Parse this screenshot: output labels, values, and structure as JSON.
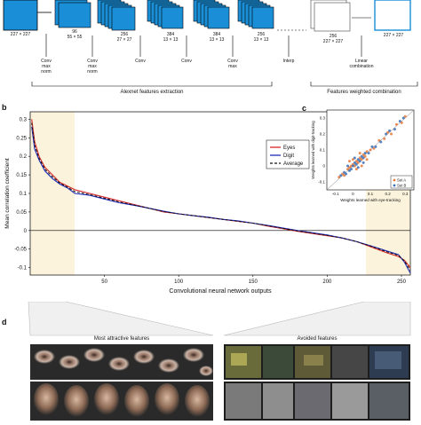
{
  "figure_top": {
    "input_dim": "227 × 227",
    "layers": [
      {
        "channels": "96",
        "dim": "55 × 55"
      },
      {
        "channels": "256",
        "dim": "27 × 27"
      },
      {
        "channels": "384",
        "dim": "13 × 13"
      },
      {
        "channels": "384",
        "dim": "13 × 13"
      },
      {
        "channels": "256",
        "dim": "13 × 13"
      }
    ],
    "interp_block": {
      "channels": "256",
      "dim": "227 × 227"
    },
    "output_dim": "227 × 227",
    "ops": [
      "Conv\nmax\nnorm",
      "Conv\nmax\nnorm",
      "Conv",
      "Conv",
      "Conv\nmax",
      "Interp",
      "Linear\ncombination"
    ],
    "group_left": "Alexnet features extraction",
    "group_right": "Features weighted combination"
  },
  "panel_b": {
    "letter": "b"
  },
  "panel_c": {
    "letter": "c"
  },
  "panel_d": {
    "letter": "d",
    "left_caption": "Most attractive features",
    "right_caption": "Avoided features"
  },
  "chart_data": [
    {
      "type": "line",
      "ylabel": "Mean correlation coefficient",
      "xlabel": "Convolutional neural network outputs",
      "xlim": [
        0,
        256
      ],
      "ylim": [
        -0.12,
        0.32
      ],
      "xticks": [
        "50",
        "100",
        "150",
        "200",
        "250"
      ],
      "yticks": [
        "0.3",
        "0.25",
        "0.2",
        "0.15",
        "0.1",
        "0.05",
        "0",
        "-0.05",
        "-0.1"
      ],
      "legend_position": "top-right",
      "highlight_ranges": [
        [
          0,
          30
        ],
        [
          226,
          256
        ]
      ],
      "series": [
        {
          "name": "Eyes",
          "color": "#d62728",
          "x": [
            1,
            3,
            6,
            10,
            15,
            20,
            25,
            30,
            40,
            50,
            60,
            70,
            80,
            90,
            100,
            110,
            120,
            130,
            140,
            150,
            160,
            170,
            180,
            190,
            200,
            210,
            220,
            230,
            240,
            248,
            252,
            256
          ],
          "y": [
            0.3,
            0.24,
            0.2,
            0.17,
            0.15,
            0.13,
            0.12,
            0.11,
            0.1,
            0.09,
            0.08,
            0.07,
            0.06,
            0.05,
            0.045,
            0.04,
            0.035,
            0.03,
            0.025,
            0.02,
            0.012,
            0.005,
            -0.002,
            -0.008,
            -0.014,
            -0.02,
            -0.03,
            -0.045,
            -0.06,
            -0.07,
            -0.08,
            -0.1
          ]
        },
        {
          "name": "Digit",
          "color": "#1f2bb8",
          "x": [
            1,
            3,
            6,
            10,
            15,
            20,
            25,
            30,
            40,
            50,
            60,
            70,
            80,
            90,
            100,
            110,
            120,
            130,
            140,
            150,
            160,
            170,
            180,
            190,
            200,
            210,
            220,
            230,
            240,
            248,
            252,
            256
          ],
          "y": [
            0.28,
            0.22,
            0.19,
            0.16,
            0.14,
            0.125,
            0.115,
            0.1,
            0.095,
            0.085,
            0.075,
            0.068,
            0.06,
            0.052,
            0.045,
            0.04,
            0.036,
            0.03,
            0.026,
            0.02,
            0.014,
            0.007,
            0.0,
            -0.006,
            -0.012,
            -0.02,
            -0.03,
            -0.042,
            -0.055,
            -0.065,
            -0.085,
            -0.115
          ]
        },
        {
          "name": "Average",
          "color": "#111111",
          "x": [
            1,
            3,
            6,
            10,
            15,
            20,
            25,
            30,
            40,
            50,
            60,
            70,
            80,
            90,
            100,
            110,
            120,
            130,
            140,
            150,
            160,
            170,
            180,
            190,
            200,
            210,
            220,
            230,
            240,
            248,
            252,
            256
          ],
          "y": [
            0.29,
            0.23,
            0.195,
            0.165,
            0.145,
            0.128,
            0.117,
            0.105,
            0.097,
            0.087,
            0.077,
            0.069,
            0.06,
            0.051,
            0.045,
            0.04,
            0.035,
            0.03,
            0.025,
            0.02,
            0.013,
            0.006,
            -0.001,
            -0.007,
            -0.013,
            -0.02,
            -0.03,
            -0.043,
            -0.057,
            -0.067,
            -0.082,
            -0.107
          ]
        }
      ]
    },
    {
      "type": "scatter",
      "xlabel": "Weights learned with eye-tracking",
      "ylabel": "Weights learned with digit-tracking",
      "xlim": [
        -0.15,
        0.35
      ],
      "ylim": [
        -0.15,
        0.35
      ],
      "xticks": [
        "-0.1",
        "0",
        "0.1",
        "0.2",
        "0.3"
      ],
      "yticks": [
        "0.3",
        "0.2",
        "0.1",
        "0",
        "-0.1"
      ],
      "legend_position": "bottom-right",
      "series": [
        {
          "name": "Set A",
          "color": "#e8793a",
          "points": [
            [
              -0.08,
              -0.07
            ],
            [
              -0.06,
              -0.05
            ],
            [
              -0.05,
              -0.06
            ],
            [
              -0.03,
              -0.02
            ],
            [
              -0.02,
              -0.01
            ],
            [
              -0.01,
              0.0
            ],
            [
              0.0,
              0.01
            ],
            [
              0.01,
              0.0
            ],
            [
              0.02,
              0.03
            ],
            [
              0.03,
              0.02
            ],
            [
              0.04,
              0.05
            ],
            [
              0.05,
              0.04
            ],
            [
              0.06,
              0.07
            ],
            [
              0.07,
              0.06
            ],
            [
              0.08,
              0.09
            ],
            [
              0.1,
              0.1
            ],
            [
              0.12,
              0.11
            ],
            [
              0.15,
              0.16
            ],
            [
              0.18,
              0.17
            ],
            [
              0.2,
              0.21
            ],
            [
              0.22,
              0.2
            ],
            [
              0.25,
              0.26
            ],
            [
              0.28,
              0.27
            ],
            [
              0.3,
              0.31
            ],
            [
              0.02,
              -0.02
            ],
            [
              0.0,
              0.04
            ],
            [
              0.05,
              0.0
            ],
            [
              -0.02,
              0.03
            ],
            [
              0.08,
              0.04
            ],
            [
              0.04,
              0.08
            ]
          ]
        },
        {
          "name": "Set B",
          "color": "#3b6fb6",
          "points": [
            [
              -0.07,
              -0.06
            ],
            [
              -0.05,
              -0.04
            ],
            [
              -0.04,
              -0.05
            ],
            [
              -0.02,
              -0.03
            ],
            [
              -0.01,
              -0.02
            ],
            [
              0.0,
              0.0
            ],
            [
              0.01,
              0.02
            ],
            [
              0.02,
              0.01
            ],
            [
              0.03,
              0.04
            ],
            [
              0.04,
              0.03
            ],
            [
              0.05,
              0.06
            ],
            [
              0.06,
              0.05
            ],
            [
              0.07,
              0.08
            ],
            [
              0.09,
              0.08
            ],
            [
              0.11,
              0.12
            ],
            [
              0.13,
              0.12
            ],
            [
              0.16,
              0.15
            ],
            [
              0.19,
              0.2
            ],
            [
              0.21,
              0.22
            ],
            [
              0.24,
              0.23
            ],
            [
              0.27,
              0.28
            ],
            [
              0.29,
              0.3
            ],
            [
              0.01,
              0.05
            ],
            [
              0.03,
              -0.01
            ],
            [
              -0.03,
              0.0
            ],
            [
              0.06,
              0.02
            ]
          ]
        }
      ]
    }
  ]
}
